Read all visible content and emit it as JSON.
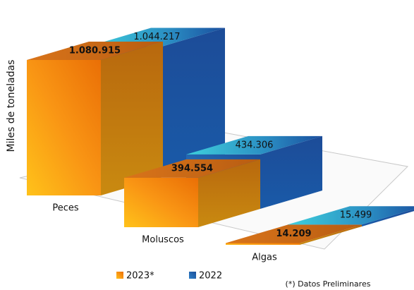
{
  "chart_data": {
    "type": "bar3d",
    "y_label": "Miles de toneladas",
    "categories": [
      "Peces",
      "Moluscos",
      "Algas"
    ],
    "series": [
      {
        "name": "2023*",
        "color": "#f08c00",
        "values": [
          1080915,
          394554,
          14209
        ],
        "value_labels": [
          "1.080.915",
          "394.554",
          "14.209"
        ]
      },
      {
        "name": "2022",
        "color": "#1f5fa8",
        "values": [
          1044217,
          434306,
          15499
        ],
        "value_labels": [
          "1.044.217",
          "434.306",
          "15.499"
        ]
      }
    ],
    "note": "(*) Datos Preliminares"
  }
}
